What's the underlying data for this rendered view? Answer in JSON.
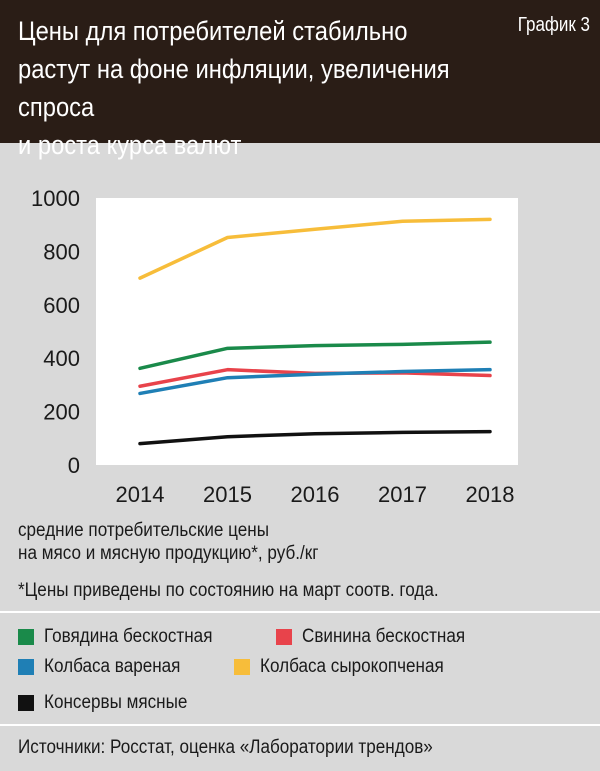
{
  "header": {
    "title_lines": [
      "Цены для потребителей стабильно",
      "растут на фоне инфляции, увеличения спроса",
      "и роста курса валют"
    ],
    "label": "График 3"
  },
  "chart_data": {
    "type": "line",
    "x": [
      "2014",
      "2015",
      "2016",
      "2017",
      "2018"
    ],
    "ylim": [
      0,
      1000
    ],
    "yticks": [
      "0",
      "200",
      "400",
      "600",
      "800",
      "1000"
    ],
    "grid": false,
    "legend_position": "bottom",
    "series": [
      {
        "name": "Говядина бескостная",
        "color": "#1a8a4a",
        "values": [
          362,
          437,
          447,
          452,
          460
        ]
      },
      {
        "name": "Свинина бескостная",
        "color": "#e8434b",
        "values": [
          295,
          357,
          343,
          345,
          335
        ]
      },
      {
        "name": "Колбаса вареная",
        "color": "#1f7fb5",
        "values": [
          268,
          327,
          340,
          350,
          357
        ]
      },
      {
        "name": "Колбаса сырокопченая",
        "color": "#f7bd3a",
        "values": [
          700,
          852,
          883,
          913,
          920
        ]
      },
      {
        "name": "Консервы мясные",
        "color": "#111111",
        "values": [
          80,
          106,
          117,
          122,
          125
        ]
      }
    ]
  },
  "subtitle_lines": [
    "средние потребительские цены",
    "на мясо и мясную продукцию*, руб./кг"
  ],
  "footnote": "*Цены приведены по состоянию на март соотв. года.",
  "source": "Источники: Росстат, оценка «Лаборатории трендов»"
}
